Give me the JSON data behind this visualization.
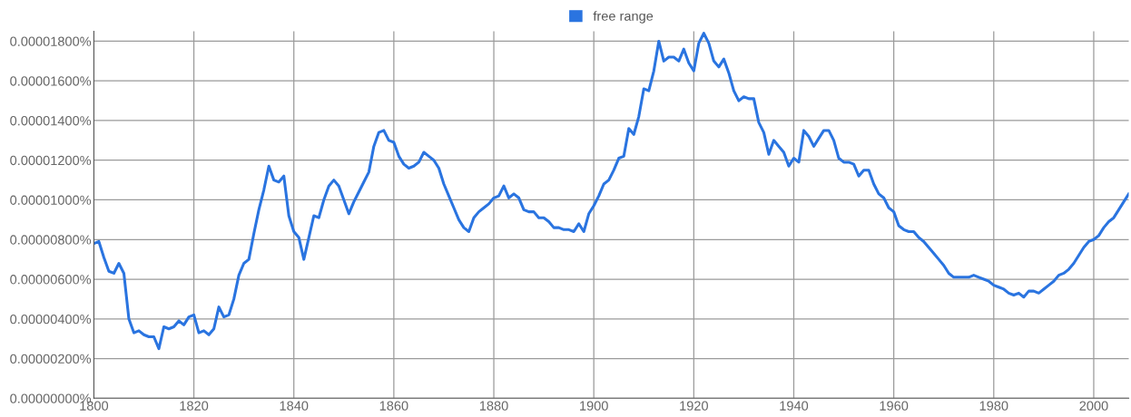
{
  "chart_data": {
    "type": "line",
    "x": [
      1800,
      1801,
      1802,
      1803,
      1804,
      1805,
      1806,
      1807,
      1808,
      1809,
      1810,
      1811,
      1812,
      1813,
      1814,
      1815,
      1816,
      1817,
      1818,
      1819,
      1820,
      1821,
      1822,
      1823,
      1824,
      1825,
      1826,
      1827,
      1828,
      1829,
      1830,
      1831,
      1832,
      1833,
      1834,
      1835,
      1836,
      1837,
      1838,
      1839,
      1840,
      1841,
      1842,
      1843,
      1844,
      1845,
      1846,
      1847,
      1848,
      1849,
      1850,
      1851,
      1852,
      1853,
      1854,
      1855,
      1856,
      1857,
      1858,
      1859,
      1860,
      1861,
      1862,
      1863,
      1864,
      1865,
      1866,
      1867,
      1868,
      1869,
      1870,
      1871,
      1872,
      1873,
      1874,
      1875,
      1876,
      1877,
      1878,
      1879,
      1880,
      1881,
      1882,
      1883,
      1884,
      1885,
      1886,
      1887,
      1888,
      1889,
      1890,
      1891,
      1892,
      1893,
      1894,
      1895,
      1896,
      1897,
      1898,
      1899,
      1900,
      1901,
      1902,
      1903,
      1904,
      1905,
      1906,
      1907,
      1908,
      1909,
      1910,
      1911,
      1912,
      1913,
      1914,
      1915,
      1916,
      1917,
      1918,
      1919,
      1920,
      1921,
      1922,
      1923,
      1924,
      1925,
      1926,
      1927,
      1928,
      1929,
      1930,
      1931,
      1932,
      1933,
      1934,
      1935,
      1936,
      1937,
      1938,
      1939,
      1940,
      1941,
      1942,
      1943,
      1944,
      1945,
      1946,
      1947,
      1948,
      1949,
      1950,
      1951,
      1952,
      1953,
      1954,
      1955,
      1956,
      1957,
      1958,
      1959,
      1960,
      1961,
      1962,
      1963,
      1964,
      1965,
      1966,
      1967,
      1968,
      1969,
      1970,
      1971,
      1972,
      1973,
      1974,
      1975,
      1976,
      1977,
      1978,
      1979,
      1980,
      1981,
      1982,
      1983,
      1984,
      1985,
      1986,
      1987,
      1988,
      1989,
      1990,
      1991,
      1992,
      1993,
      1994,
      1995,
      1996,
      1997,
      1998,
      1999,
      2000,
      2001,
      2002,
      2003,
      2004,
      2005,
      2006,
      2007
    ],
    "series": [
      {
        "name": "free range",
        "color": "#2a74e0",
        "values": [
          7.8e-06,
          7.9e-06,
          7.1e-06,
          6.4e-06,
          6.3e-06,
          6.8e-06,
          6.3e-06,
          4e-06,
          3.3e-06,
          3.4e-06,
          3.2e-06,
          3.1e-06,
          3.1e-06,
          2.5e-06,
          3.6e-06,
          3.5e-06,
          3.6e-06,
          3.9e-06,
          3.7e-06,
          4.1e-06,
          4.2e-06,
          3.3e-06,
          3.4e-06,
          3.2e-06,
          3.5e-06,
          4.6e-06,
          4.1e-06,
          4.2e-06,
          5e-06,
          6.2e-06,
          6.8e-06,
          7e-06,
          8.3e-06,
          9.5e-06,
          1.05e-05,
          1.17e-05,
          1.1e-05,
          1.09e-05,
          1.12e-05,
          9.2e-06,
          8.4e-06,
          8.1e-06,
          7e-06,
          8.1e-06,
          9.2e-06,
          9.1e-06,
          1e-05,
          1.07e-05,
          1.1e-05,
          1.07e-05,
          1e-05,
          9.3e-06,
          9.9e-06,
          1.04e-05,
          1.09e-05,
          1.14e-05,
          1.27e-05,
          1.34e-05,
          1.35e-05,
          1.3e-05,
          1.29e-05,
          1.22e-05,
          1.18e-05,
          1.16e-05,
          1.17e-05,
          1.19e-05,
          1.24e-05,
          1.22e-05,
          1.2e-05,
          1.16e-05,
          1.08e-05,
          1.02e-05,
          9.6e-06,
          9e-06,
          8.6e-06,
          8.4e-06,
          9.1e-06,
          9.4e-06,
          9.6e-06,
          9.8e-06,
          1.01e-05,
          1.02e-05,
          1.07e-05,
          1.01e-05,
          1.03e-05,
          1.01e-05,
          9.5e-06,
          9.4e-06,
          9.4e-06,
          9.1e-06,
          9.1e-06,
          8.9e-06,
          8.6e-06,
          8.6e-06,
          8.5e-06,
          8.5e-06,
          8.4e-06,
          8.8e-06,
          8.4e-06,
          9.3e-06,
          9.7e-06,
          1.02e-05,
          1.08e-05,
          1.1e-05,
          1.15e-05,
          1.21e-05,
          1.22e-05,
          1.36e-05,
          1.33e-05,
          1.42e-05,
          1.56e-05,
          1.55e-05,
          1.65e-05,
          1.8e-05,
          1.7e-05,
          1.72e-05,
          1.72e-05,
          1.7e-05,
          1.76e-05,
          1.69e-05,
          1.65e-05,
          1.79e-05,
          1.84e-05,
          1.79e-05,
          1.7e-05,
          1.67e-05,
          1.71e-05,
          1.64e-05,
          1.55e-05,
          1.5e-05,
          1.52e-05,
          1.51e-05,
          1.51e-05,
          1.39e-05,
          1.34e-05,
          1.23e-05,
          1.3e-05,
          1.27e-05,
          1.24e-05,
          1.17e-05,
          1.21e-05,
          1.19e-05,
          1.35e-05,
          1.32e-05,
          1.27e-05,
          1.31e-05,
          1.35e-05,
          1.35e-05,
          1.3e-05,
          1.21e-05,
          1.19e-05,
          1.19e-05,
          1.18e-05,
          1.12e-05,
          1.15e-05,
          1.15e-05,
          1.08e-05,
          1.03e-05,
          1.01e-05,
          9.6e-06,
          9.4e-06,
          8.7e-06,
          8.5e-06,
          8.4e-06,
          8.4e-06,
          8.1e-06,
          7.9e-06,
          7.6e-06,
          7.3e-06,
          7e-06,
          6.7e-06,
          6.3e-06,
          6.1e-06,
          6.1e-06,
          6.1e-06,
          6.1e-06,
          6.2e-06,
          6.1e-06,
          6e-06,
          5.9e-06,
          5.7e-06,
          5.6e-06,
          5.5e-06,
          5.3e-06,
          5.2e-06,
          5.3e-06,
          5.1e-06,
          5.4e-06,
          5.4e-06,
          5.3e-06,
          5.5e-06,
          5.7e-06,
          5.9e-06,
          6.2e-06,
          6.3e-06,
          6.5e-06,
          6.8e-06,
          7.2e-06,
          7.6e-06,
          7.9e-06,
          8e-06,
          8.2e-06,
          8.6e-06,
          8.9e-06,
          9.1e-06,
          9.5e-06,
          9.9e-06,
          1.03e-05
        ]
      }
    ],
    "xlim": [
      1800,
      2007
    ],
    "xticks": [
      1800,
      1820,
      1840,
      1860,
      1880,
      1900,
      1920,
      1940,
      1960,
      1980,
      2000
    ],
    "ylim": [
      0,
      1.85e-05
    ],
    "yticks": [
      {
        "value": 0,
        "label": "0.00000000%"
      },
      {
        "value": 2e-06,
        "label": "0.00000200%"
      },
      {
        "value": 4e-06,
        "label": "0.00000400%"
      },
      {
        "value": 6e-06,
        "label": "0.00000600%"
      },
      {
        "value": 8e-06,
        "label": "0.00000800%"
      },
      {
        "value": 1e-05,
        "label": "0.00001000%"
      },
      {
        "value": 1.2e-05,
        "label": "0.00001200%"
      },
      {
        "value": 1.4e-05,
        "label": "0.00001400%"
      },
      {
        "value": 1.6e-05,
        "label": "0.00001600%"
      },
      {
        "value": 1.8e-05,
        "label": "0.00001800%"
      }
    ],
    "grid": true,
    "legend": "top",
    "marker": "none",
    "line_style": "solid"
  }
}
